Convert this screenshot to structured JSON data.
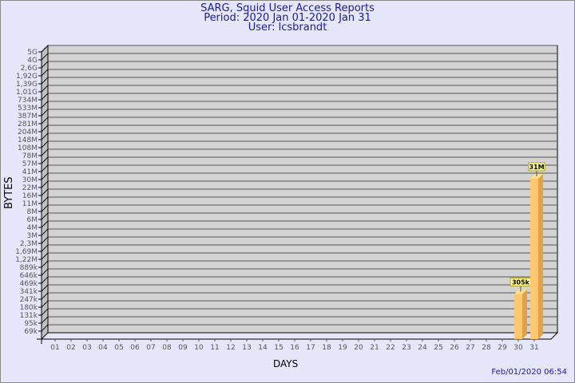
{
  "header": {
    "title": "SARG, Squid User Access Reports",
    "period": "Period: 2020 Jan 01-2020 Jan 31",
    "user": "User: lcsbrandt"
  },
  "footer": {
    "timestamp": "Feb/01/2020 06:54"
  },
  "chart_data": {
    "type": "bar",
    "xlabel": "DAYS",
    "ylabel": "BYTES",
    "yscale": "log",
    "grid": true,
    "categories": [
      "01",
      "02",
      "03",
      "04",
      "05",
      "06",
      "07",
      "08",
      "09",
      "10",
      "11",
      "12",
      "13",
      "14",
      "15",
      "16",
      "17",
      "18",
      "19",
      "20",
      "21",
      "22",
      "23",
      "24",
      "25",
      "26",
      "27",
      "28",
      "29",
      "30",
      "31"
    ],
    "values": [
      0,
      0,
      0,
      0,
      0,
      0,
      0,
      0,
      0,
      0,
      0,
      0,
      0,
      0,
      0,
      0,
      0,
      0,
      0,
      0,
      0,
      0,
      0,
      0,
      0,
      0,
      0,
      0,
      0,
      305000,
      31000000
    ],
    "data_labels": {
      "30": "305k",
      "31": "31M"
    },
    "ytick_labels": [
      "5G",
      "4G",
      "2,6G",
      "1,92G",
      "1,39G",
      "1,01G",
      "734M",
      "533M",
      "387M",
      "281M",
      "204M",
      "148M",
      "108M",
      "78M",
      "57M",
      "41M",
      "30M",
      "22M",
      "16M",
      "11M",
      "8M",
      "6M",
      "4M",
      "3M",
      "2,3M",
      "1,69M",
      "1,22M",
      "889k",
      "646k",
      "469k",
      "341k",
      "247k",
      "180k",
      "131k",
      "95k",
      "69k"
    ],
    "ytick_values": [
      5000000000.0,
      4000000000.0,
      2600000000.0,
      1920000000.0,
      1390000000.0,
      1010000000.0,
      734000000.0,
      533000000.0,
      387000000.0,
      281000000.0,
      204000000.0,
      148000000.0,
      108000000.0,
      78000000.0,
      57000000.0,
      41000000.0,
      30000000.0,
      22000000.0,
      16000000.0,
      11000000.0,
      8000000.0,
      6000000.0,
      4000000.0,
      3000000.0,
      2300000.0,
      1690000.0,
      1220000.0,
      889000,
      646000,
      469000,
      341000,
      247000,
      180000,
      131000,
      95000,
      69000
    ],
    "colors": {
      "bar": "#ffc870",
      "bar_side": "#e0a248",
      "bar_top": "#ffe08a",
      "plot_bg": "#d3d3d3",
      "label_bg": "#ffff99"
    }
  }
}
